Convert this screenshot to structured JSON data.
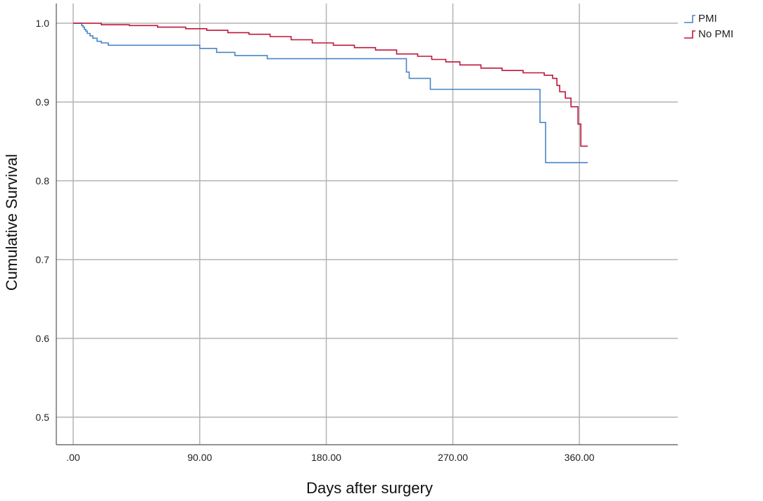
{
  "chart_data": {
    "type": "line",
    "step": true,
    "xlabel": "Days after surgery",
    "ylabel": "Cumulative Survival",
    "xlim": [
      -12,
      430
    ],
    "ylim": [
      0.465,
      1.025
    ],
    "x_ticks": [
      0,
      90,
      180,
      270,
      360
    ],
    "x_tick_labels": [
      ".00",
      "90.00",
      "180.00",
      "270.00",
      "360.00"
    ],
    "y_ticks": [
      0.5,
      0.6,
      0.7,
      0.8,
      0.9,
      1.0
    ],
    "y_tick_labels": [
      "0.5",
      "0.6",
      "0.7",
      "0.8",
      "0.9",
      "1.0"
    ],
    "grid": true,
    "legend_position": "top-right",
    "series": [
      {
        "name": "PMI",
        "color": "#4a86c5",
        "x": [
          0,
          6,
          7,
          8,
          9,
          10,
          12,
          14,
          17,
          20,
          25,
          90,
          102,
          115,
          138,
          237,
          239,
          254,
          332,
          336,
          366
        ],
        "y": [
          1.0,
          0.997,
          0.995,
          0.992,
          0.99,
          0.987,
          0.984,
          0.981,
          0.977,
          0.975,
          0.972,
          0.968,
          0.963,
          0.959,
          0.955,
          0.938,
          0.93,
          0.916,
          0.874,
          0.823,
          0.823
        ]
      },
      {
        "name": "No PMI",
        "color": "#c0143c",
        "x": [
          0,
          20,
          40,
          60,
          80,
          95,
          110,
          125,
          140,
          155,
          170,
          185,
          200,
          215,
          230,
          245,
          255,
          265,
          275,
          290,
          305,
          320,
          335,
          341,
          344,
          346,
          350,
          354,
          359,
          361,
          366
        ],
        "y": [
          1.0,
          0.998,
          0.997,
          0.995,
          0.993,
          0.991,
          0.988,
          0.986,
          0.983,
          0.979,
          0.975,
          0.972,
          0.969,
          0.966,
          0.961,
          0.958,
          0.954,
          0.951,
          0.947,
          0.943,
          0.94,
          0.937,
          0.934,
          0.93,
          0.921,
          0.913,
          0.905,
          0.894,
          0.872,
          0.844,
          0.844
        ]
      }
    ]
  }
}
